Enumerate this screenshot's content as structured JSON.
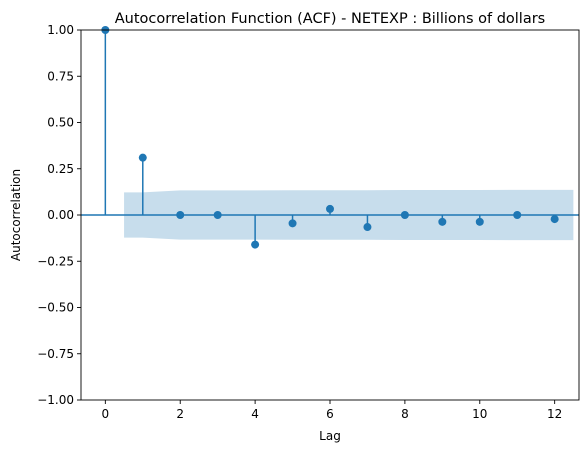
{
  "chart_data": {
    "type": "scatter",
    "title": "Autocorrelation Function (ACF) - NETEXP : Billions of dollars",
    "xlabel": "Lag",
    "ylabel": "Autocorrelation",
    "xlim": [
      -0.65,
      12.65
    ],
    "ylim": [
      -1.0,
      1.0
    ],
    "x_ticks": [
      0,
      2,
      4,
      6,
      8,
      10,
      12
    ],
    "y_ticks": [
      -1.0,
      -0.75,
      -0.5,
      -0.25,
      0.0,
      0.25,
      0.5,
      0.75,
      1.0
    ],
    "x_tick_labels": [
      "0",
      "2",
      "4",
      "6",
      "8",
      "10",
      "12"
    ],
    "y_tick_labels": [
      "−1.00",
      "−0.75",
      "−0.50",
      "−0.25",
      "0.00",
      "0.25",
      "0.50",
      "0.75",
      "1.00"
    ],
    "grid": false,
    "legend": "none",
    "lags": [
      0,
      1,
      2,
      3,
      4,
      5,
      6,
      7,
      8,
      9,
      10,
      11,
      12
    ],
    "acf": [
      1.0,
      0.31,
      0.0,
      0.0,
      -0.16,
      -0.045,
      0.033,
      -0.065,
      0.0,
      -0.037,
      -0.037,
      0.0,
      -0.022
    ],
    "confidence_band": {
      "lags": [
        0.5,
        1,
        2,
        3,
        4,
        5,
        6,
        7,
        8,
        9,
        10,
        11,
        12,
        12.5
      ],
      "upper": [
        0.122,
        0.122,
        0.133,
        0.133,
        0.133,
        0.134,
        0.134,
        0.134,
        0.135,
        0.135,
        0.135,
        0.136,
        0.136,
        0.136
      ],
      "lower": [
        -0.122,
        -0.122,
        -0.133,
        -0.133,
        -0.133,
        -0.134,
        -0.134,
        -0.134,
        -0.135,
        -0.135,
        -0.135,
        -0.136,
        -0.136,
        -0.136
      ]
    },
    "colors": {
      "stem": "#1f77b4",
      "band": "#1f77b4",
      "zero_line": "#1f77b4"
    }
  }
}
